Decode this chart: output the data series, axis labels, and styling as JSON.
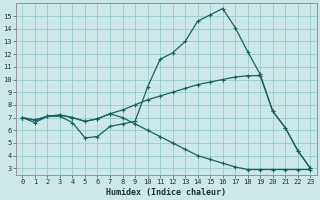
{
  "xlabel": "Humidex (Indice chaleur)",
  "bg_color": "#cce8e8",
  "grid_color": "#99cccc",
  "line_color": "#1a6060",
  "xlim": [
    -0.5,
    23.5
  ],
  "ylim": [
    2.5,
    16.0
  ],
  "xticks": [
    0,
    1,
    2,
    3,
    4,
    5,
    6,
    7,
    8,
    9,
    10,
    11,
    12,
    13,
    14,
    15,
    16,
    17,
    18,
    19,
    20,
    21,
    22,
    23
  ],
  "yticks": [
    3,
    4,
    5,
    6,
    7,
    8,
    9,
    10,
    11,
    12,
    13,
    14,
    15
  ],
  "line1_x": [
    0,
    1,
    2,
    3,
    4,
    5,
    6,
    7,
    8,
    9,
    10,
    11,
    12,
    13,
    14,
    15,
    16,
    17,
    18,
    19,
    20,
    21,
    22,
    23
  ],
  "line1_y": [
    7.0,
    6.6,
    7.1,
    7.1,
    6.6,
    5.4,
    5.5,
    6.3,
    6.5,
    6.7,
    9.4,
    11.6,
    12.1,
    13.0,
    14.6,
    15.1,
    15.6,
    14.1,
    12.2,
    10.4,
    7.5,
    6.2,
    4.4,
    3.0
  ],
  "line2_x": [
    0,
    1,
    2,
    3,
    4,
    5,
    6,
    7,
    8,
    9,
    10,
    11,
    12,
    13,
    14,
    15,
    16,
    17,
    18,
    19,
    20,
    21,
    22,
    23
  ],
  "line2_y": [
    7.0,
    6.8,
    7.1,
    7.2,
    7.0,
    6.7,
    6.9,
    7.3,
    7.6,
    8.0,
    8.4,
    8.7,
    9.0,
    9.3,
    9.6,
    9.8,
    10.0,
    10.2,
    10.3,
    10.3,
    7.5,
    6.2,
    4.4,
    3.0
  ],
  "line3_x": [
    0,
    1,
    2,
    3,
    4,
    5,
    6,
    7,
    8,
    9,
    10,
    11,
    12,
    13,
    14,
    15,
    16,
    17,
    18,
    19,
    20,
    21,
    22,
    23
  ],
  "line3_y": [
    7.0,
    6.8,
    7.1,
    7.2,
    7.0,
    6.7,
    6.9,
    7.3,
    7.0,
    6.5,
    6.0,
    5.5,
    5.0,
    4.5,
    4.0,
    3.7,
    3.4,
    3.1,
    2.9,
    2.9,
    2.9,
    2.9,
    2.9,
    2.9
  ]
}
